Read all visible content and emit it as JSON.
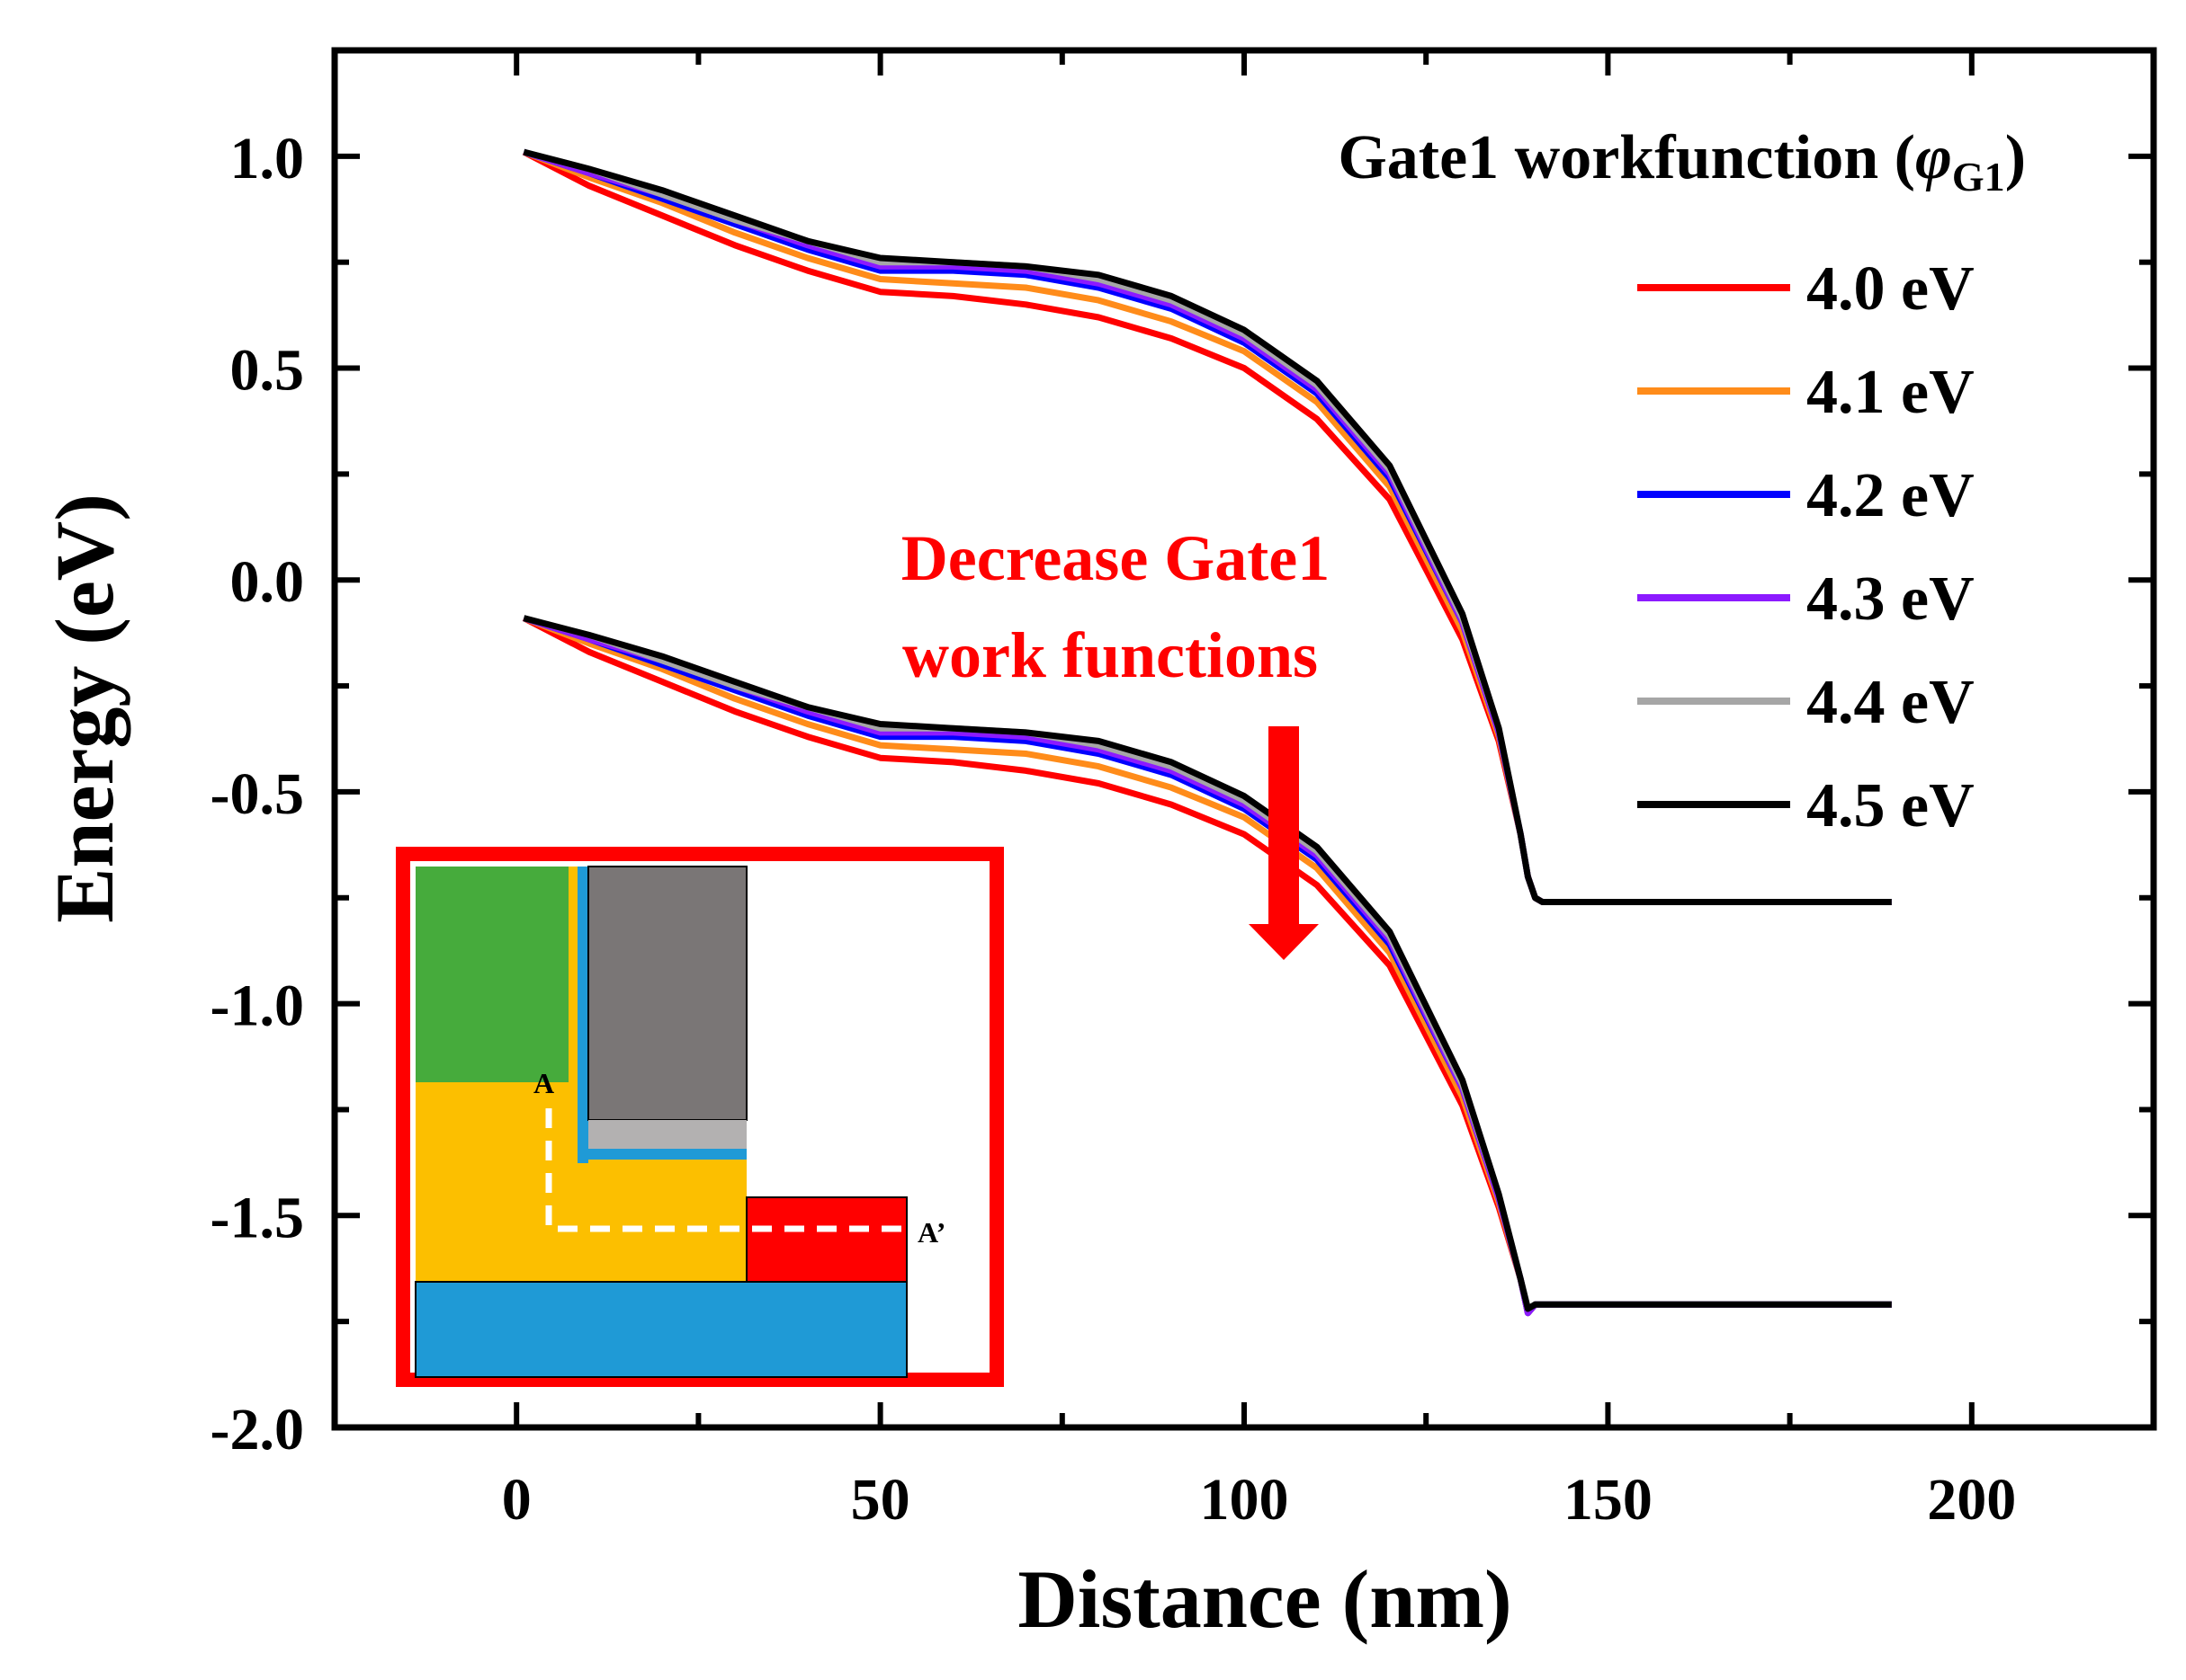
{
  "chart_data": {
    "type": "line",
    "xlabel": "Distance (nm)",
    "ylabel": "Energy (eV)",
    "xlim": [
      -25,
      225
    ],
    "ylim": [
      -2.0,
      1.25
    ],
    "xticks": [
      "0",
      "50",
      "100",
      "150",
      "200"
    ],
    "xtick_values": [
      0,
      50,
      100,
      150,
      200
    ],
    "yticks": [
      "1.0",
      "0.5",
      "0.0",
      "-0.5",
      "-1.0",
      "-1.5",
      "-2.0"
    ],
    "ytick_values": [
      1.0,
      0.5,
      0.0,
      -0.5,
      -1.0,
      -1.5,
      -2.0
    ],
    "legend": {
      "title_prefix": "Gate1 workfunction (",
      "title_symbol": "φ",
      "title_subscript": "G1",
      "title_suffix": ")",
      "placement": "top-right"
    },
    "annotation": {
      "line1": "Decrease Gate1",
      "line2": "work functions",
      "arrow": "down"
    },
    "inset": {
      "label_a": "A",
      "label_a_prime": "A’",
      "colors": {
        "border": "#ff0000",
        "green": "#46ab3c",
        "yellow": "#fcbf00",
        "blue": "#1f9ad6",
        "gray": "#7a7676",
        "light_gray": "#b3b1b1",
        "red": "#ff0000",
        "dashed": "#ffffff"
      }
    },
    "x": [
      1,
      10,
      20,
      30,
      40,
      50,
      60,
      70,
      80,
      90,
      100,
      110,
      120,
      130,
      135,
      138,
      139,
      140,
      141,
      145,
      160,
      175,
      189
    ],
    "series": [
      {
        "name": "4.0 eV",
        "color": "#ff0000",
        "conduction_band": [
          1.01,
          0.93,
          0.86,
          0.79,
          0.73,
          0.68,
          0.67,
          0.65,
          0.62,
          0.57,
          0.5,
          0.38,
          0.19,
          -0.14,
          -0.38,
          -0.6,
          -0.7,
          -0.75,
          -0.76,
          -0.76,
          -0.76,
          -0.76,
          -0.76
        ],
        "valence_band": [
          -0.09,
          -0.17,
          -0.24,
          -0.31,
          -0.37,
          -0.42,
          -0.43,
          -0.45,
          -0.48,
          -0.53,
          -0.6,
          -0.72,
          -0.91,
          -1.24,
          -1.48,
          -1.65,
          -1.73,
          -1.71,
          -1.71,
          -1.71,
          -1.71,
          -1.71,
          -1.71
        ]
      },
      {
        "name": "4.1 eV",
        "color": "#ff8c1a",
        "conduction_band": [
          1.01,
          0.95,
          0.89,
          0.82,
          0.76,
          0.71,
          0.7,
          0.69,
          0.66,
          0.61,
          0.54,
          0.42,
          0.22,
          -0.12,
          -0.37,
          -0.6,
          -0.7,
          -0.75,
          -0.76,
          -0.76,
          -0.76,
          -0.76,
          -0.76
        ],
        "valence_band": [
          -0.09,
          -0.15,
          -0.21,
          -0.28,
          -0.34,
          -0.39,
          -0.4,
          -0.41,
          -0.44,
          -0.49,
          -0.56,
          -0.68,
          -0.88,
          -1.22,
          -1.47,
          -1.65,
          -1.73,
          -1.71,
          -1.71,
          -1.71,
          -1.71,
          -1.71,
          -1.71
        ]
      },
      {
        "name": "4.2 eV",
        "color": "#0000ff",
        "conduction_band": [
          1.01,
          0.96,
          0.9,
          0.84,
          0.78,
          0.73,
          0.73,
          0.72,
          0.69,
          0.64,
          0.56,
          0.44,
          0.24,
          -0.1,
          -0.36,
          -0.6,
          -0.7,
          -0.75,
          -0.76,
          -0.76,
          -0.76,
          -0.76,
          -0.76
        ],
        "valence_band": [
          -0.09,
          -0.14,
          -0.2,
          -0.26,
          -0.32,
          -0.37,
          -0.37,
          -0.38,
          -0.41,
          -0.46,
          -0.54,
          -0.66,
          -0.86,
          -1.2,
          -1.46,
          -1.65,
          -1.73,
          -1.71,
          -1.71,
          -1.71,
          -1.71,
          -1.71,
          -1.71
        ]
      },
      {
        "name": "4.3 eV",
        "color": "#8c1aff",
        "conduction_band": [
          1.01,
          0.96,
          0.91,
          0.85,
          0.79,
          0.74,
          0.74,
          0.73,
          0.7,
          0.65,
          0.57,
          0.45,
          0.25,
          -0.1,
          -0.36,
          -0.6,
          -0.7,
          -0.75,
          -0.76,
          -0.76,
          -0.76,
          -0.76,
          -0.76
        ],
        "valence_band": [
          -0.09,
          -0.14,
          -0.19,
          -0.25,
          -0.31,
          -0.36,
          -0.36,
          -0.37,
          -0.4,
          -0.45,
          -0.53,
          -0.65,
          -0.85,
          -1.2,
          -1.46,
          -1.65,
          -1.73,
          -1.71,
          -1.71,
          -1.71,
          -1.71,
          -1.71,
          -1.71
        ]
      },
      {
        "name": "4.4 eV",
        "color": "#a6a6a6",
        "conduction_band": [
          1.01,
          0.97,
          0.91,
          0.85,
          0.8,
          0.75,
          0.75,
          0.74,
          0.71,
          0.66,
          0.58,
          0.46,
          0.26,
          -0.09,
          -0.35,
          -0.6,
          -0.7,
          -0.75,
          -0.76,
          -0.76,
          -0.76,
          -0.76,
          -0.76
        ],
        "valence_band": [
          -0.09,
          -0.13,
          -0.19,
          -0.25,
          -0.3,
          -0.35,
          -0.35,
          -0.36,
          -0.39,
          -0.44,
          -0.52,
          -0.64,
          -0.84,
          -1.19,
          -1.45,
          -1.65,
          -1.72,
          -1.71,
          -1.71,
          -1.71,
          -1.71,
          -1.71,
          -1.71
        ]
      },
      {
        "name": "4.5 eV",
        "color": "#000000",
        "conduction_band": [
          1.01,
          0.97,
          0.92,
          0.86,
          0.8,
          0.76,
          0.75,
          0.74,
          0.72,
          0.67,
          0.59,
          0.47,
          0.27,
          -0.08,
          -0.35,
          -0.6,
          -0.7,
          -0.75,
          -0.76,
          -0.76,
          -0.76,
          -0.76,
          -0.76
        ],
        "valence_band": [
          -0.09,
          -0.13,
          -0.18,
          -0.24,
          -0.3,
          -0.34,
          -0.35,
          -0.36,
          -0.38,
          -0.43,
          -0.51,
          -0.63,
          -0.83,
          -1.18,
          -1.45,
          -1.65,
          -1.72,
          -1.71,
          -1.71,
          -1.71,
          -1.71,
          -1.71,
          -1.71
        ]
      }
    ]
  }
}
